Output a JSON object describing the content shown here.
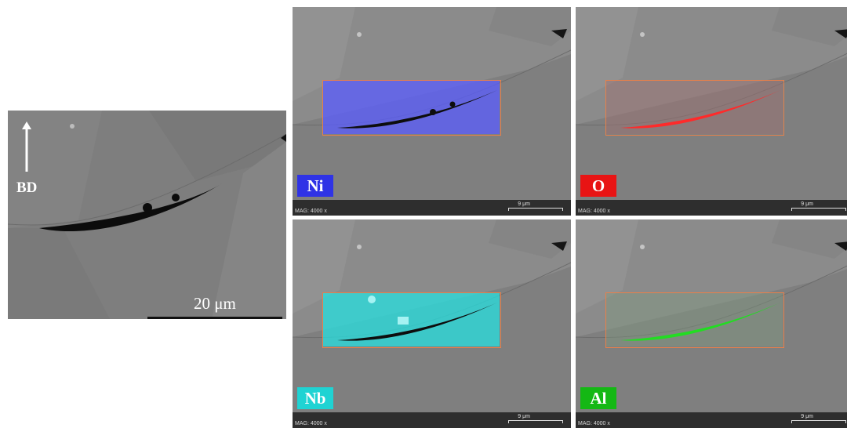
{
  "main_image": {
    "direction_label": "BD",
    "scale_text": "20 μm"
  },
  "panels": [
    {
      "element": "Ni",
      "color": "#2f33e6",
      "overlay": "#5a5cff",
      "mag_text": "MAG: 4000 x",
      "scale_text": "9 μm"
    },
    {
      "element": "O",
      "color": "#e81414",
      "overlay": "#ff2a2a",
      "mag_text": "MAG: 4000 x",
      "scale_text": "9 μm"
    },
    {
      "element": "Nb",
      "color": "#1fd3d3",
      "overlay": "#25e0e0",
      "mag_text": "MAG: 4000 x",
      "scale_text": "9 μm"
    },
    {
      "element": "Al",
      "color": "#14b814",
      "overlay": "#22dd22",
      "mag_text": "MAG: 4000 x",
      "scale_text": "9 μm"
    }
  ]
}
